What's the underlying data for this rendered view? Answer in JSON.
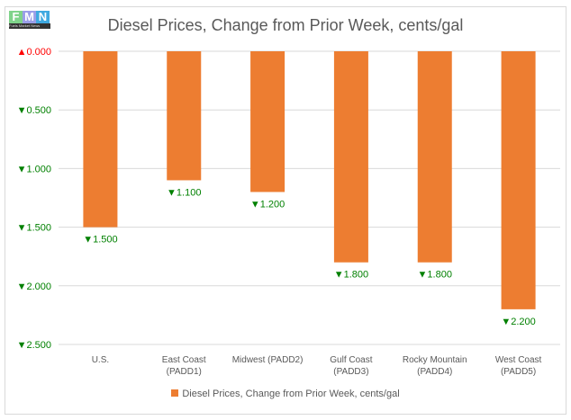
{
  "logo": {
    "letters": [
      "F",
      "M",
      "N"
    ],
    "caption": "Fuels Market News"
  },
  "chart_data": {
    "type": "bar",
    "title": "Diesel Prices, Change from Prior Week, cents/gal",
    "categories": [
      [
        "U.S."
      ],
      [
        "East Coast",
        "(PADD1)"
      ],
      [
        "Midwest (PADD2)"
      ],
      [
        "Gulf Coast",
        "(PADD3)"
      ],
      [
        "Rocky Mountain",
        "(PADD4)"
      ],
      [
        "West Coast",
        "(PADD5)"
      ]
    ],
    "series": [
      {
        "name": "Diesel Prices, Change from Prior Week, cents/gal",
        "values": [
          -1.5,
          -1.1,
          -1.2,
          -1.8,
          -1.8,
          -2.2
        ],
        "color": "#ed7d31"
      }
    ],
    "data_labels": [
      "▼1.500",
      "▼1.100",
      "▼1.200",
      "▼1.800",
      "▼1.800",
      "▼2.200"
    ],
    "yticks": [
      0,
      -0.5,
      -1,
      -1.5,
      -2,
      -2.5
    ],
    "ytick_labels": [
      "▲0.000",
      "▼0.500",
      "▼1.000",
      "▼1.500",
      "▼2.000",
      "▼2.500"
    ],
    "ylim": [
      -2.5,
      0
    ],
    "legend": "bottom",
    "colors": {
      "up": "#ff0000",
      "down": "#008000"
    }
  }
}
